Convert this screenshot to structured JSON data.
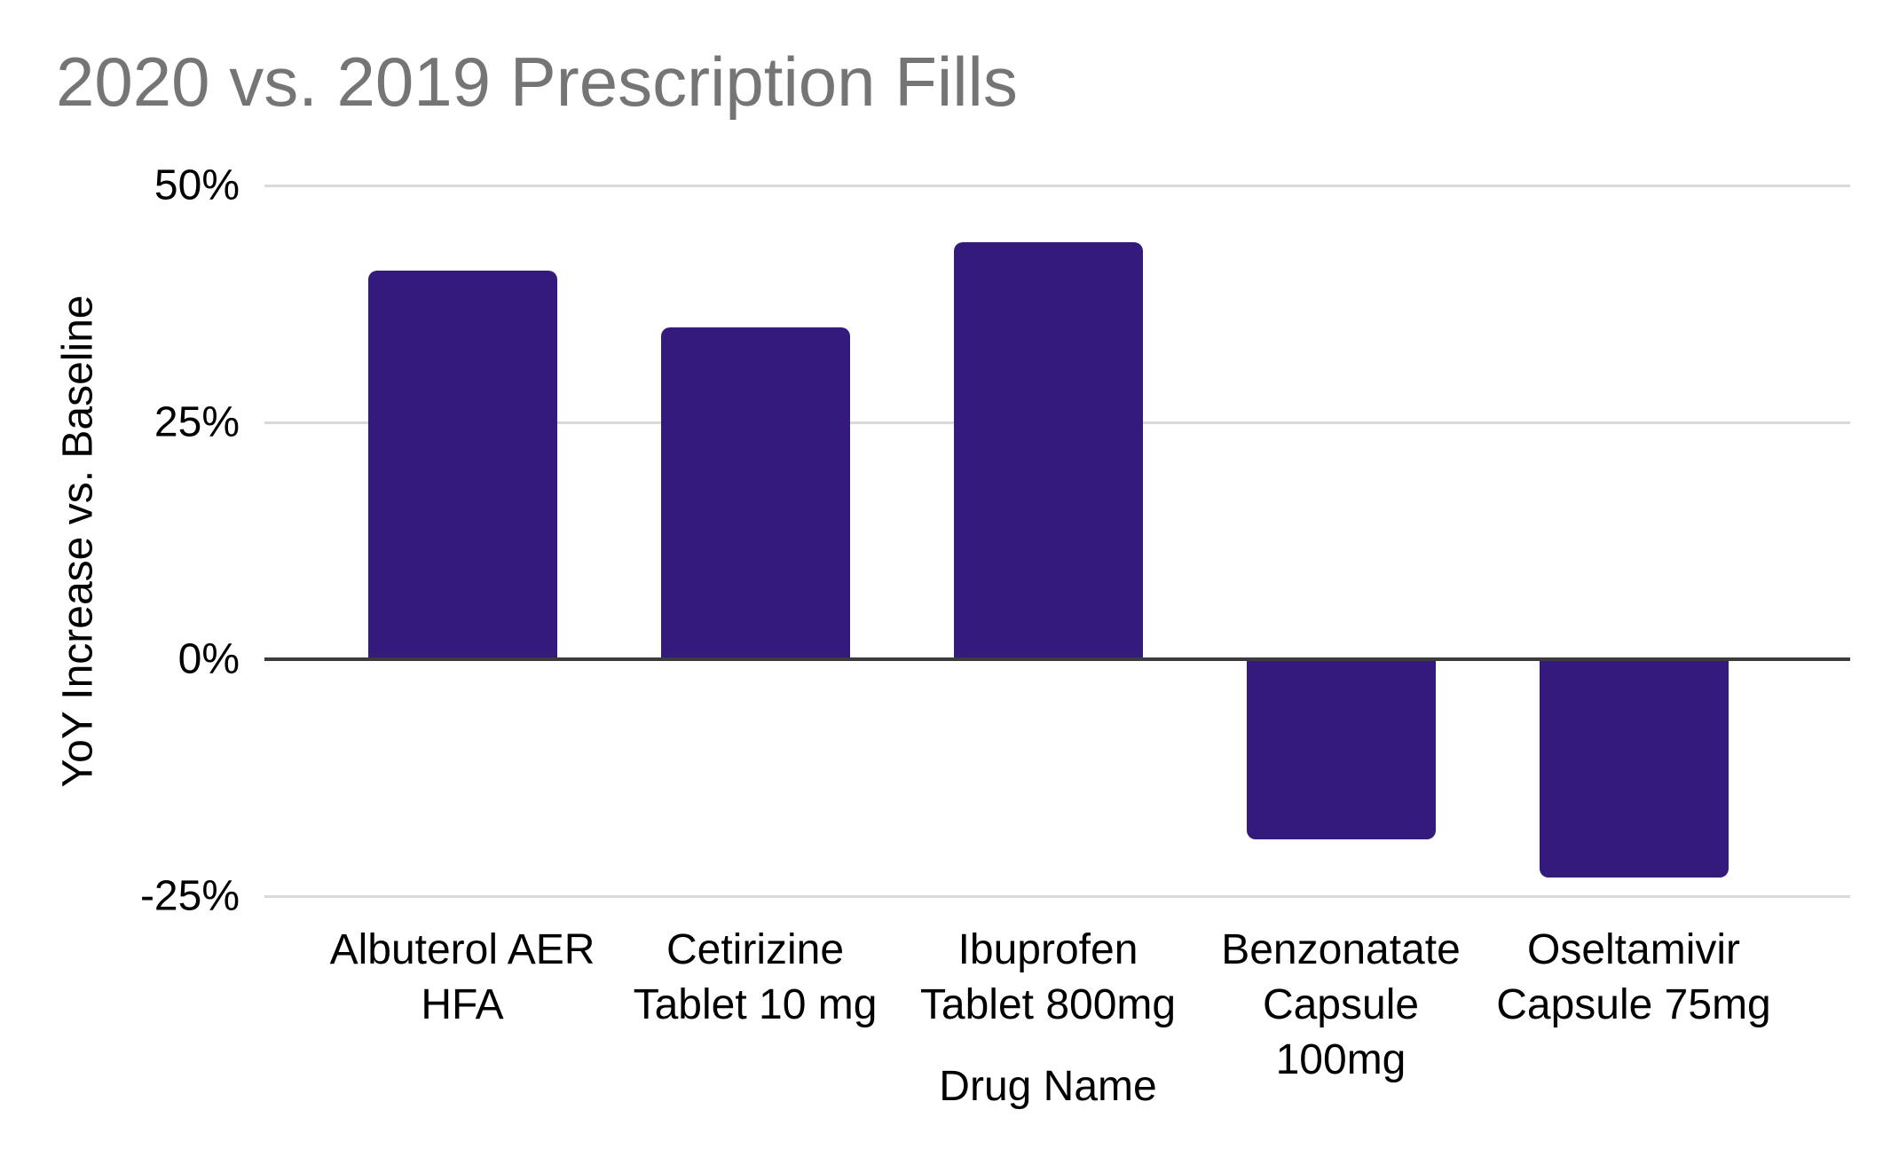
{
  "chart_data": {
    "type": "bar",
    "title": "2020 vs. 2019 Prescription Fills",
    "xlabel": "Drug Name",
    "ylabel": "YoY Increase vs. Baseline",
    "categories": [
      "Albuterol AER HFA",
      "Cetirizine Tablet 10 mg",
      "Ibuprofen Tablet 800mg",
      "Benzonatate Capsule 100mg",
      "Oseltamivir Capsule 75mg"
    ],
    "category_lines": [
      [
        "Albuterol AER",
        "HFA"
      ],
      [
        "Cetirizine",
        "Tablet 10 mg"
      ],
      [
        "Ibuprofen",
        "Tablet 800mg"
      ],
      [
        "Benzonatate",
        "Capsule 100mg"
      ],
      [
        "Oseltamivir",
        "Capsule 75mg"
      ]
    ],
    "values": [
      41,
      35,
      44,
      -19,
      -23
    ],
    "unit": "%",
    "ylim": [
      -25,
      50
    ],
    "yticks": [
      50,
      25,
      0,
      -25
    ],
    "ytick_labels": [
      "50%",
      "25%",
      "0%",
      "-25%"
    ],
    "grid": true,
    "legend": "none",
    "colors": {
      "bar": "#331a7c",
      "title_text": "#757575",
      "gridline": "#d9d9d9",
      "zero_axis_line": "#3c3c3c",
      "label_text": "#000000"
    }
  }
}
